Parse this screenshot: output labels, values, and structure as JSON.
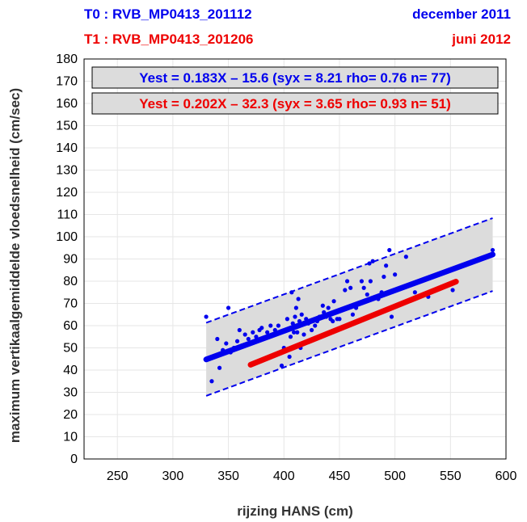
{
  "header": {
    "t0_label": "T0 : RVB_MP0413_201112",
    "t0_date": "december 2011",
    "t1_label": "T1 : RVB_MP0413_201206",
    "t1_date": "juni 2012"
  },
  "colors": {
    "t0": "#0000ee",
    "t1": "#ee0000",
    "band": "#dcdcdc",
    "grid": "#e6e6e6"
  },
  "chart_data": {
    "type": "scatter",
    "xlabel": "rijzing HANS (cm)",
    "ylabel": "maximum vertikaalgemiddelde vloedsnelheid (cm/sec)",
    "xlim": [
      220,
      600
    ],
    "ylim": [
      0,
      180
    ],
    "xticks": [
      250,
      300,
      350,
      400,
      450,
      500,
      550,
      600
    ],
    "yticks": [
      0,
      10,
      20,
      30,
      40,
      50,
      60,
      70,
      80,
      90,
      100,
      110,
      120,
      130,
      140,
      150,
      160,
      170,
      180
    ],
    "grid": true,
    "equations": [
      "Yest = 0.183X – 15.6 (syx = 8.21 rho= 0.76 n= 77)",
      "Yest = 0.202X – 32.3 (syx = 3.65 rho= 0.93 n= 51)"
    ],
    "series": [
      {
        "color": "#0000ee",
        "points": [
          [
            330,
            64
          ],
          [
            335,
            35
          ],
          [
            340,
            54
          ],
          [
            342,
            41
          ],
          [
            345,
            49
          ],
          [
            348,
            52
          ],
          [
            350,
            68
          ],
          [
            352,
            48
          ],
          [
            355,
            50
          ],
          [
            358,
            53
          ],
          [
            360,
            58
          ],
          [
            362,
            51
          ],
          [
            365,
            56
          ],
          [
            368,
            54
          ],
          [
            372,
            57
          ],
          [
            375,
            55
          ],
          [
            378,
            58
          ],
          [
            380,
            59
          ],
          [
            385,
            57
          ],
          [
            388,
            60
          ],
          [
            392,
            58
          ],
          [
            395,
            60
          ],
          [
            398,
            42
          ],
          [
            400,
            50
          ],
          [
            401,
            58
          ],
          [
            403,
            63
          ],
          [
            405,
            46
          ],
          [
            406,
            55
          ],
          [
            407,
            75
          ],
          [
            408,
            61
          ],
          [
            409,
            57
          ],
          [
            410,
            64
          ],
          [
            411,
            68
          ],
          [
            412,
            57
          ],
          [
            413,
            72
          ],
          [
            414,
            62
          ],
          [
            415,
            50
          ],
          [
            416,
            65
          ],
          [
            418,
            56
          ],
          [
            420,
            63
          ],
          [
            422,
            61
          ],
          [
            425,
            58
          ],
          [
            428,
            60
          ],
          [
            430,
            62
          ],
          [
            432,
            64
          ],
          [
            435,
            69
          ],
          [
            436,
            66
          ],
          [
            438,
            64
          ],
          [
            440,
            68
          ],
          [
            442,
            63
          ],
          [
            444,
            62
          ],
          [
            445,
            71
          ],
          [
            448,
            63
          ],
          [
            450,
            63
          ],
          [
            455,
            76
          ],
          [
            457,
            80
          ],
          [
            460,
            77
          ],
          [
            462,
            65
          ],
          [
            465,
            68
          ],
          [
            470,
            80
          ],
          [
            472,
            77
          ],
          [
            475,
            74
          ],
          [
            477,
            88
          ],
          [
            478,
            80
          ],
          [
            480,
            89
          ],
          [
            485,
            72
          ],
          [
            488,
            75
          ],
          [
            490,
            82
          ],
          [
            492,
            87
          ],
          [
            495,
            94
          ],
          [
            497,
            64
          ],
          [
            500,
            83
          ],
          [
            510,
            91
          ],
          [
            518,
            75
          ],
          [
            530,
            73
          ],
          [
            552,
            76
          ],
          [
            588,
            94
          ]
        ],
        "fit": {
          "x": [
            330,
            588
          ],
          "y": [
            44.8,
            92.0
          ]
        },
        "band": {
          "x": [
            330,
            588
          ],
          "upper": [
            61.3,
            108.4
          ],
          "lower": [
            28.4,
            75.6
          ]
        }
      },
      {
        "color": "#ee0000",
        "fit": {
          "x": [
            370,
            555
          ],
          "y": [
            42.4,
            79.8
          ]
        }
      }
    ]
  }
}
